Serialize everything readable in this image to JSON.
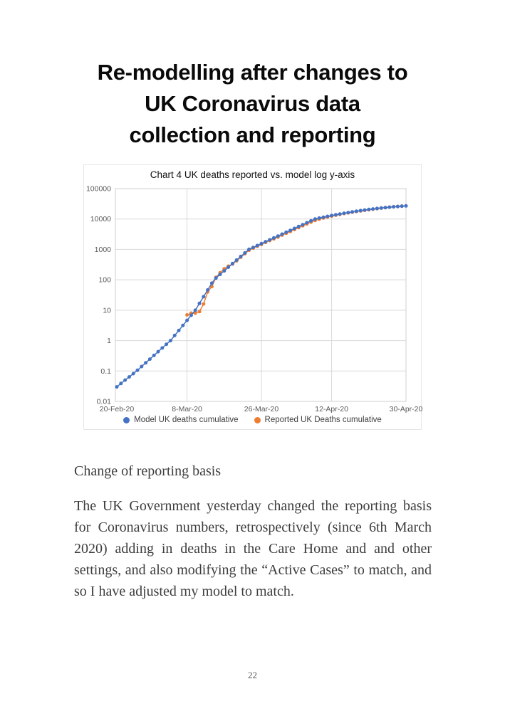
{
  "page": {
    "title_lines": [
      "Re-modelling after changes to",
      "UK Coronavirus data",
      "collection and reporting"
    ],
    "page_number": "22"
  },
  "section": {
    "heading": "Change of reporting basis",
    "paragraph": "The UK Government yesterday changed the reporting basis for Coronavirus numbers, retrospectively (since 6th March 2020) adding in deaths in the Care Home and and other settings, and also modifying the “Active Cases” to match, and so I have adjusted my model to match."
  },
  "chart_data": {
    "type": "line",
    "title": "Chart 4 UK deaths reported vs. model log y-axis",
    "y_scale": "log",
    "ylim": [
      0.01,
      100000
    ],
    "grid": true,
    "legend_position": "bottom",
    "x_unit": "days since 20-Feb-20",
    "y_ticks": [
      "100000",
      "10000",
      "1000",
      "100",
      "10",
      "1",
      "0.1",
      "0.01"
    ],
    "x_ticks": [
      {
        "day": 0,
        "label": "20-Feb-20"
      },
      {
        "day": 17,
        "label": "8-Mar-20"
      },
      {
        "day": 35,
        "label": "26-Mar-20"
      },
      {
        "day": 52,
        "label": "12-Apr-20"
      },
      {
        "day": 70,
        "label": "30-Apr-20"
      }
    ],
    "series": [
      {
        "name": "Model UK deaths cumulative",
        "color": "#4472C4",
        "start_day": 0,
        "values": [
          0.03,
          0.039,
          0.05,
          0.064,
          0.082,
          0.106,
          0.14,
          0.186,
          0.246,
          0.326,
          0.432,
          0.572,
          0.758,
          1.0,
          1.47,
          2.15,
          3.16,
          4.64,
          6.81,
          10,
          16.7,
          27.8,
          46.4,
          77.4,
          114,
          150,
          197,
          259,
          340,
          445,
          584,
          766,
          1005,
          1160,
          1340,
          1550,
          1790,
          2060,
          2380,
          2750,
          3175,
          3670,
          4230,
          4890,
          5640,
          6510,
          7520,
          8680,
          10000,
          10730,
          11470,
          12230,
          13010,
          13810,
          14630,
          15460,
          16300,
          17150,
          18010,
          18860,
          19720,
          20560,
          21390,
          22200,
          22980,
          23730,
          24450,
          25130,
          25770,
          26370,
          26920
        ]
      },
      {
        "name": "Reported UK Deaths cumulative",
        "color": "#ED7D31",
        "start_day": 17,
        "values": [
          7,
          8,
          8,
          9,
          16,
          40,
          60,
          120,
          170,
          230,
          280,
          330,
          420,
          550,
          720,
          940,
          1100,
          1270,
          1450,
          1700,
          1950,
          2230,
          2550,
          2950,
          3400,
          3900,
          4500,
          5200,
          6000,
          6900,
          7900,
          9000,
          9900,
          10800,
          11650,
          12500,
          13350,
          14200,
          15050,
          15900,
          16750,
          17600,
          18450,
          19300,
          20150,
          21000,
          21900,
          22800,
          23700,
          24500,
          25300,
          26000,
          26600
        ]
      }
    ]
  }
}
